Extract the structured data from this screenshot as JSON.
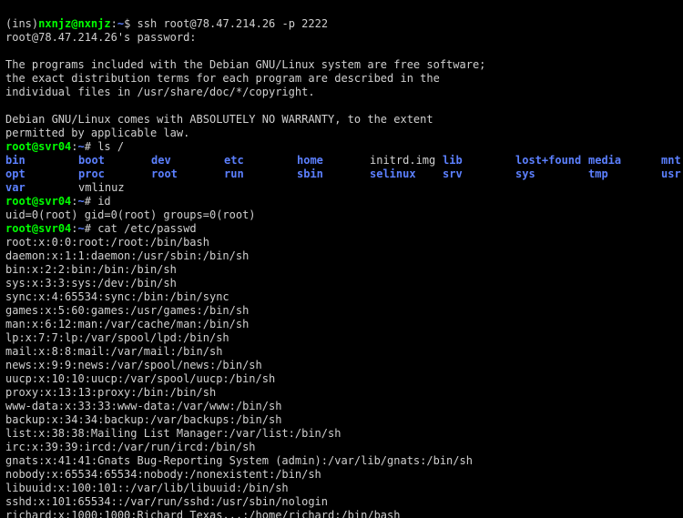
{
  "colors": {
    "background": "#000000",
    "foreground": "#d0d0d0",
    "green": "#00ff00",
    "blue": "#5c80ff",
    "cursor": "#ffffff"
  },
  "prompt1": {
    "mode": "(ins)",
    "user": "nxnjz",
    "at": "@",
    "host": "nxnjz",
    "tilde": "~",
    "dollar": "$",
    "cmd": "ssh root@78.47.214.26 -p 2222"
  },
  "password_line": "root@78.47.214.26's password:",
  "motd": [
    "",
    "The programs included with the Debian GNU/Linux system are free software;",
    "the exact distribution terms for each program are described in the",
    "individual files in /usr/share/doc/*/copyright.",
    "",
    "Debian GNU/Linux comes with ABSOLUTELY NO WARRANTY, to the extent",
    "permitted by applicable law."
  ],
  "remote_prompt": {
    "user": "root",
    "host": "svr04",
    "path": "~",
    "sigil": "#"
  },
  "cmd_ls": "ls /",
  "ls_rows": [
    [
      "bin",
      "boot",
      "dev",
      "etc",
      "home",
      "initrd.img",
      "lib",
      "lost+found",
      "media",
      "mnt"
    ],
    [
      "opt",
      "proc",
      "root",
      "run",
      "sbin",
      "selinux",
      "srv",
      "sys",
      "tmp",
      "usr"
    ],
    [
      "var",
      "vmlinuz",
      "",
      "",
      "",
      "",
      "",
      "",
      "",
      ""
    ]
  ],
  "cmd_id": "id",
  "id_output": "uid=0(root) gid=0(root) groups=0(root)",
  "cmd_cat": "cat /etc/passwd",
  "passwd": [
    "root:x:0:0:root:/root:/bin/bash",
    "daemon:x:1:1:daemon:/usr/sbin:/bin/sh",
    "bin:x:2:2:bin:/bin:/bin/sh",
    "sys:x:3:3:sys:/dev:/bin/sh",
    "sync:x:4:65534:sync:/bin:/bin/sync",
    "games:x:5:60:games:/usr/games:/bin/sh",
    "man:x:6:12:man:/var/cache/man:/bin/sh",
    "lp:x:7:7:lp:/var/spool/lpd:/bin/sh",
    "mail:x:8:8:mail:/var/mail:/bin/sh",
    "news:x:9:9:news:/var/spool/news:/bin/sh",
    "uucp:x:10:10:uucp:/var/spool/uucp:/bin/sh",
    "proxy:x:13:13:proxy:/bin:/bin/sh",
    "www-data:x:33:33:www-data:/var/www:/bin/sh",
    "backup:x:34:34:backup:/var/backups:/bin/sh",
    "list:x:38:38:Mailing List Manager:/var/list:/bin/sh",
    "irc:x:39:39:ircd:/var/run/ircd:/bin/sh",
    "gnats:x:41:41:Gnats Bug-Reporting System (admin):/var/lib/gnats:/bin/sh",
    "nobody:x:65534:65534:nobody:/nonexistent:/bin/sh",
    "libuuid:x:100:101::/var/lib/libuuid:/bin/sh",
    "sshd:x:101:65534::/var/run/sshd:/usr/sbin/nologin",
    "richard:x:1000:1000:Richard Texas,,,:/home/richard:/bin/bash"
  ]
}
